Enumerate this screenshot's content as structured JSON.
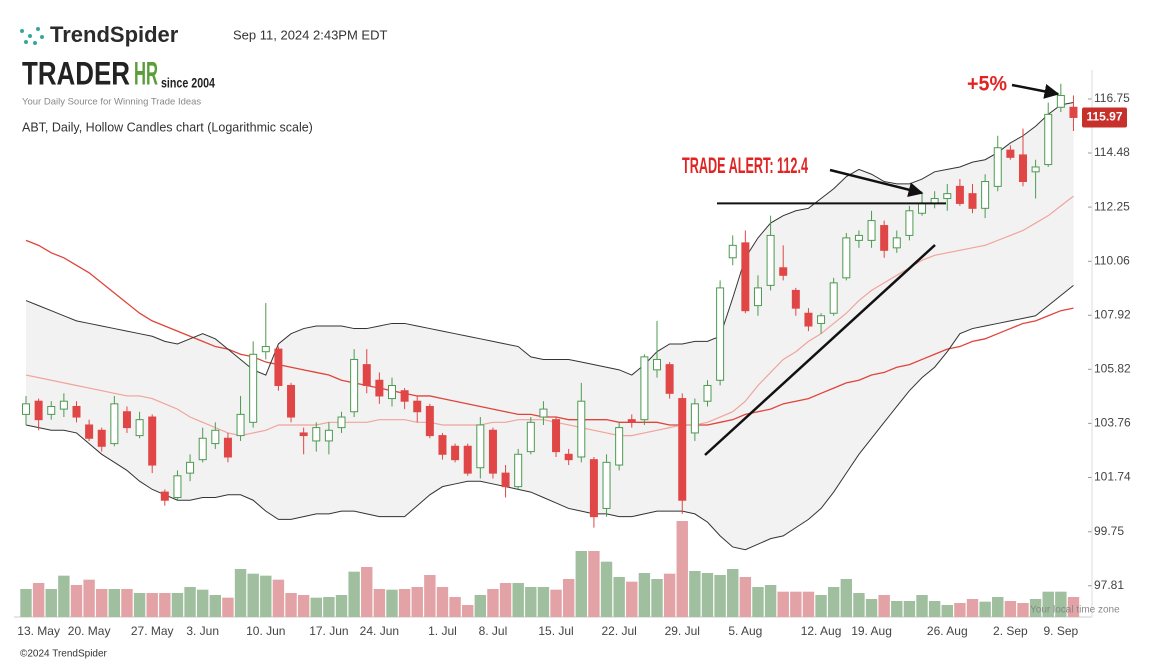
{
  "header": {
    "brand": "TrendSpider",
    "timestamp": "Sep 11, 2024 2:43PM EDT",
    "logo_left": "TRADER",
    "logo_right": "HR",
    "since": "since 2004",
    "tagline": "Your Daily Source for Winning Trade Ideas"
  },
  "footer": {
    "copyright": "©2024 TrendSpider",
    "timezone": "Your local time zone"
  },
  "chart_data": {
    "type": "candlestick",
    "title": "ABT, Daily, Hollow Candles chart (Logarithmic scale)",
    "log_scale": true,
    "ylim": [
      96.6,
      117.56
    ],
    "yticks": [
      97.81,
      99.75,
      101.74,
      103.76,
      105.82,
      107.92,
      110.06,
      112.25,
      114.48,
      116.75
    ],
    "up_color": "#4c9a50",
    "down_color": "#e04646",
    "volume_up_color": "#9fbf9f",
    "volume_down_color": "#e3a3a6",
    "band_color": "#333333",
    "band_fill": "#f2f2f2",
    "middle_color": "#f0a49c",
    "sma_color": "#e0443a",
    "annotation_color": "#e02424",
    "categories": [
      null,
      "13. May",
      null,
      null,
      null,
      "20. May",
      null,
      null,
      null,
      null,
      "27. May",
      null,
      null,
      null,
      "3. Jun",
      null,
      null,
      null,
      null,
      "10. Jun",
      null,
      null,
      null,
      null,
      "17. Jun",
      null,
      null,
      null,
      "24. Jun",
      null,
      null,
      null,
      null,
      "1. Jul",
      null,
      null,
      null,
      "8. Jul",
      null,
      null,
      null,
      null,
      "15. Jul",
      null,
      null,
      null,
      null,
      "22. Jul",
      null,
      null,
      null,
      null,
      "29. Jul",
      null,
      null,
      null,
      null,
      "5. Aug",
      null,
      null,
      null,
      null,
      null,
      "12. Aug",
      null,
      null,
      null,
      "19. Aug",
      null,
      null,
      null,
      null,
      null,
      "26. Aug",
      null,
      null,
      null,
      null,
      "2. Sep",
      null,
      null,
      null,
      "9. Sep",
      null
    ],
    "open": [
      104.1,
      104.6,
      104.1,
      104.3,
      104.4,
      103.7,
      103.5,
      103.0,
      104.2,
      103.3,
      104.0,
      101.2,
      101.0,
      101.9,
      102.4,
      103.0,
      103.2,
      103.3,
      103.8,
      106.5,
      106.6,
      105.2,
      103.4,
      103.1,
      103.1,
      103.6,
      104.2,
      106.0,
      105.4,
      104.7,
      105.0,
      104.6,
      104.4,
      103.3,
      102.9,
      102.9,
      102.1,
      103.5,
      101.9,
      101.4,
      102.7,
      104.0,
      103.9,
      102.6,
      102.5,
      102.4,
      100.6,
      102.2,
      103.9,
      103.9,
      105.8,
      106.0,
      104.7,
      103.4,
      104.6,
      105.4,
      110.2,
      110.8,
      108.3,
      109.1,
      109.8,
      108.9,
      108.0,
      107.6,
      108.0,
      109.4,
      110.9,
      110.9,
      111.5,
      110.6,
      111.1,
      112.0,
      112.4,
      112.6,
      113.1,
      112.8,
      112.2,
      113.1,
      114.6,
      114.4,
      113.7,
      114.0,
      116.4,
      116.4
    ],
    "high": [
      104.8,
      104.7,
      104.6,
      104.9,
      104.6,
      103.9,
      103.6,
      104.8,
      104.4,
      104.2,
      104.1,
      101.3,
      102.0,
      102.6,
      103.6,
      103.8,
      103.4,
      104.8,
      106.9,
      108.4,
      106.7,
      105.3,
      103.6,
      103.8,
      103.8,
      104.2,
      106.6,
      106.6,
      105.7,
      105.5,
      105.1,
      104.8,
      104.5,
      103.4,
      103.0,
      103.0,
      104.0,
      103.6,
      102.2,
      102.8,
      104.0,
      104.6,
      104.0,
      102.8,
      105.3,
      102.5,
      102.6,
      103.8,
      104.1,
      106.4,
      107.7,
      106.1,
      104.9,
      104.7,
      105.4,
      109.3,
      111.1,
      111.3,
      109.5,
      111.9,
      110.7,
      109.0,
      108.2,
      108.0,
      109.4,
      111.2,
      111.3,
      112.1,
      111.7,
      111.3,
      112.3,
      112.8,
      112.9,
      113.2,
      113.4,
      113.2,
      113.6,
      115.2,
      114.8,
      115.5,
      114.2,
      116.6,
      117.4,
      116.9
    ],
    "low": [
      103.7,
      103.5,
      103.9,
      104.0,
      103.8,
      103.1,
      102.7,
      102.9,
      103.4,
      103.2,
      101.9,
      100.7,
      100.9,
      101.6,
      102.3,
      102.8,
      102.3,
      103.1,
      103.6,
      106.2,
      105.0,
      103.8,
      102.6,
      102.7,
      102.6,
      103.4,
      104.0,
      104.9,
      104.5,
      104.4,
      104.3,
      103.8,
      103.2,
      102.4,
      102.3,
      101.8,
      101.7,
      101.7,
      101.0,
      101.3,
      102.6,
      103.7,
      102.5,
      102.2,
      102.3,
      99.9,
      100.3,
      102.0,
      103.6,
      103.7,
      105.5,
      104.7,
      100.4,
      103.1,
      104.4,
      105.2,
      109.9,
      108.0,
      107.9,
      108.9,
      109.3,
      107.9,
      107.3,
      107.2,
      107.9,
      109.3,
      110.6,
      110.6,
      110.2,
      110.4,
      110.9,
      111.9,
      112.2,
      112.1,
      112.3,
      112.0,
      111.8,
      112.9,
      114.2,
      113.1,
      112.6,
      113.9,
      116.2,
      115.4
    ],
    "close": [
      104.5,
      103.9,
      104.4,
      104.6,
      104.0,
      103.2,
      102.9,
      104.5,
      103.6,
      103.9,
      102.2,
      100.9,
      101.8,
      102.3,
      103.2,
      103.5,
      102.5,
      104.1,
      106.4,
      106.7,
      105.2,
      104.0,
      103.3,
      103.6,
      103.5,
      104.0,
      106.2,
      105.2,
      104.8,
      105.2,
      104.6,
      104.2,
      103.3,
      102.6,
      102.4,
      101.9,
      103.7,
      101.9,
      101.4,
      102.6,
      103.8,
      104.3,
      102.7,
      102.4,
      104.6,
      100.3,
      102.3,
      103.6,
      103.8,
      106.3,
      106.2,
      104.9,
      100.9,
      104.5,
      105.2,
      109.0,
      110.7,
      108.1,
      109.0,
      111.1,
      109.5,
      108.2,
      107.5,
      107.9,
      109.2,
      111.0,
      111.1,
      111.7,
      110.5,
      111.0,
      112.1,
      112.4,
      112.6,
      112.8,
      112.4,
      112.2,
      113.3,
      114.7,
      114.3,
      113.3,
      113.9,
      116.1,
      116.9,
      115.97
    ],
    "volume": [
      4.2,
      5.1,
      4.2,
      6.2,
      4.8,
      5.6,
      4.2,
      4.2,
      4.2,
      3.6,
      3.6,
      3.6,
      3.6,
      4.5,
      4.1,
      3.3,
      2.9,
      7.2,
      6.5,
      6.2,
      5.6,
      3.6,
      3.3,
      2.9,
      3.0,
      3.3,
      6.8,
      7.5,
      4.2,
      4.1,
      4.2,
      4.5,
      6.3,
      4.5,
      3.0,
      1.8,
      3.3,
      4.2,
      5.1,
      5.1,
      4.5,
      4.5,
      4.1,
      5.7,
      9.9,
      9.9,
      8.3,
      6.0,
      5.3,
      6.6,
      5.7,
      6.5,
      14.4,
      6.9,
      6.6,
      6.3,
      7.2,
      6.0,
      4.5,
      4.8,
      3.8,
      3.8,
      3.8,
      3.3,
      4.5,
      5.7,
      3.6,
      2.7,
      3.3,
      2.4,
      2.4,
      3.3,
      2.4,
      1.8,
      2.1,
      2.7,
      2.3,
      3.0,
      2.4,
      2.1,
      2.7,
      3.8,
      3.8,
      3.0
    ],
    "bands": {
      "upper": [
        108.5,
        108.3,
        108.1,
        107.9,
        107.7,
        107.6,
        107.5,
        107.4,
        107.3,
        107.2,
        107.1,
        106.9,
        106.8,
        107.0,
        107.2,
        107.0,
        106.6,
        106.2,
        105.8,
        105.6,
        106.8,
        107.2,
        107.4,
        107.5,
        107.5,
        107.5,
        107.4,
        107.4,
        107.5,
        107.6,
        107.6,
        107.5,
        107.4,
        107.3,
        107.2,
        107.1,
        107.0,
        106.9,
        106.8,
        106.7,
        106.3,
        106.2,
        106.2,
        106.2,
        106.1,
        106.0,
        105.9,
        105.8,
        105.6,
        106.0,
        106.5,
        106.8,
        106.8,
        106.9,
        106.9,
        107.1,
        108.6,
        110.2,
        111.0,
        111.6,
        111.9,
        112.1,
        112.2,
        112.6,
        113.0,
        113.5,
        113.8,
        113.6,
        113.3,
        113.2,
        113.2,
        113.4,
        113.7,
        113.8,
        113.9,
        114.1,
        114.2,
        114.5,
        114.9,
        115.2,
        115.6,
        116.1,
        116.5,
        116.6
      ],
      "middle": [
        105.6,
        105.5,
        105.4,
        105.3,
        105.2,
        105.1,
        105.0,
        104.9,
        104.8,
        104.8,
        104.7,
        104.5,
        104.3,
        104.0,
        103.8,
        103.6,
        103.4,
        103.3,
        103.4,
        103.5,
        103.7,
        103.7,
        103.7,
        103.7,
        103.8,
        103.8,
        103.8,
        103.8,
        103.9,
        103.9,
        103.9,
        103.8,
        103.8,
        103.7,
        103.7,
        103.7,
        103.7,
        103.8,
        103.8,
        103.9,
        103.9,
        103.9,
        103.8,
        103.7,
        103.6,
        103.5,
        103.4,
        103.3,
        103.3,
        103.4,
        103.5,
        103.6,
        103.7,
        103.7,
        103.8,
        104.0,
        104.2,
        104.6,
        105.2,
        105.7,
        106.2,
        106.5,
        106.9,
        107.2,
        107.6,
        108.0,
        108.5,
        108.9,
        109.2,
        109.5,
        109.8,
        110.1,
        110.3,
        110.4,
        110.5,
        110.6,
        110.7,
        110.9,
        111.1,
        111.3,
        111.6,
        111.9,
        112.3,
        112.7
      ],
      "lower": [
        103.7,
        103.6,
        103.5,
        103.5,
        103.4,
        103.0,
        102.6,
        102.3,
        102.0,
        101.6,
        101.3,
        101.1,
        100.9,
        100.9,
        101.0,
        101.0,
        101.1,
        101.1,
        100.9,
        100.5,
        100.2,
        100.2,
        100.3,
        100.4,
        100.4,
        100.5,
        100.5,
        100.4,
        100.3,
        100.3,
        100.3,
        100.7,
        101.1,
        101.4,
        101.5,
        101.6,
        101.6,
        101.5,
        101.4,
        101.3,
        101.2,
        101.0,
        100.8,
        100.6,
        100.5,
        100.4,
        100.4,
        100.3,
        100.3,
        100.4,
        100.5,
        100.5,
        100.5,
        100.4,
        100.1,
        99.6,
        99.2,
        99.1,
        99.3,
        99.5,
        99.6,
        99.9,
        100.2,
        100.6,
        101.2,
        101.9,
        102.6,
        103.2,
        103.8,
        104.4,
        105.0,
        105.5,
        105.9,
        106.5,
        107.2,
        107.4,
        107.5,
        107.6,
        107.7,
        107.8,
        107.9,
        108.3,
        108.7,
        109.1
      ]
    },
    "sma": [
      110.9,
      110.7,
      110.4,
      110.2,
      109.9,
      109.6,
      109.2,
      108.8,
      108.4,
      108.0,
      107.7,
      107.5,
      107.3,
      107.1,
      106.9,
      106.7,
      106.6,
      106.4,
      106.3,
      106.1,
      106.0,
      105.9,
      105.8,
      105.7,
      105.6,
      105.4,
      105.3,
      105.2,
      105.1,
      105.0,
      104.9,
      104.8,
      104.8,
      104.7,
      104.6,
      104.5,
      104.4,
      104.3,
      104.2,
      104.1,
      104.1,
      104.0,
      104.0,
      103.9,
      103.9,
      103.9,
      103.9,
      103.8,
      103.8,
      103.8,
      103.8,
      103.7,
      103.7,
      103.7,
      103.7,
      103.8,
      103.9,
      104.1,
      104.2,
      104.3,
      104.5,
      104.6,
      104.7,
      104.9,
      105.1,
      105.3,
      105.4,
      105.6,
      105.7,
      105.9,
      106.0,
      106.2,
      106.4,
      106.6,
      106.7,
      106.9,
      107.0,
      107.2,
      107.4,
      107.6,
      107.7,
      107.9,
      108.1,
      108.2
    ],
    "annotations": [
      {
        "text": "TRADE ALERT: 112.4",
        "value": 112.4
      },
      {
        "text": "+5%"
      }
    ]
  }
}
